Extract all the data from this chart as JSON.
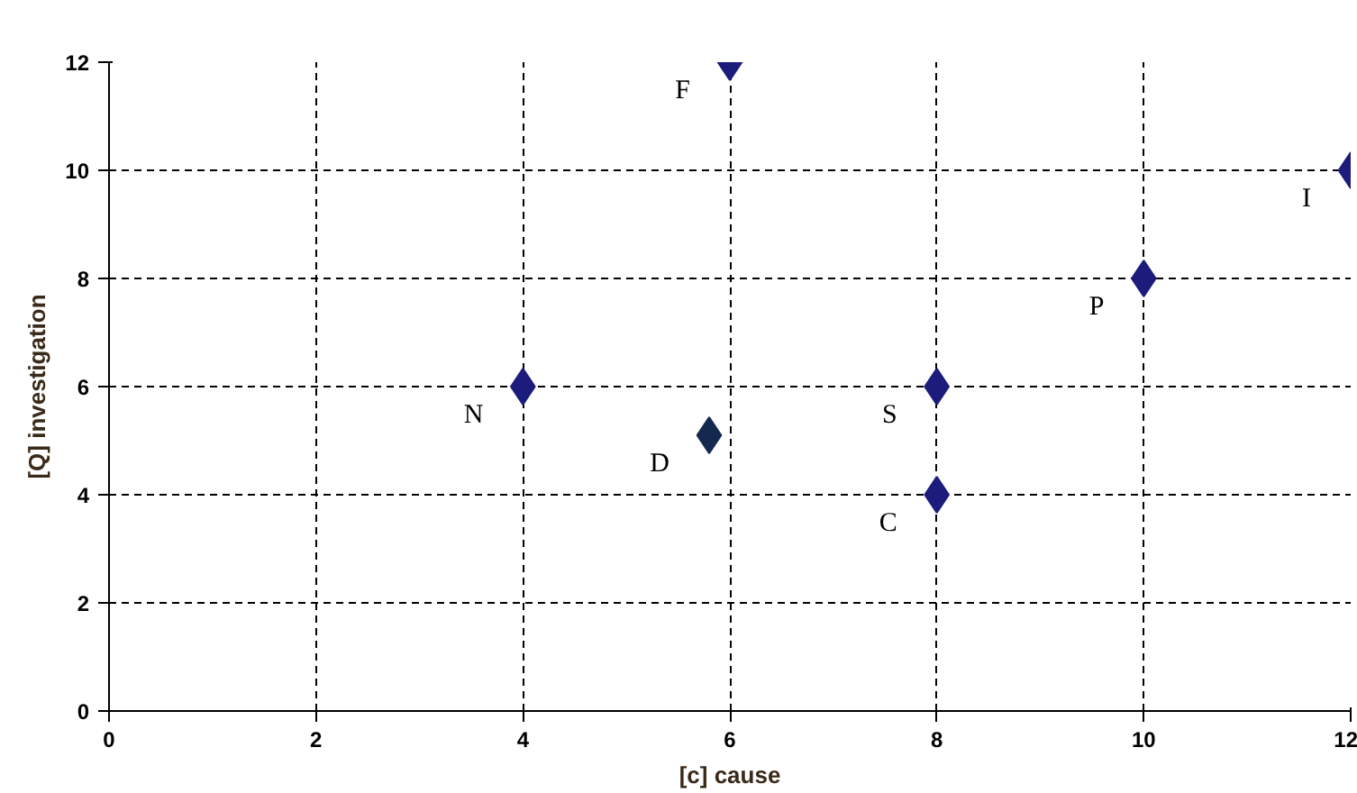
{
  "chart_data": {
    "type": "scatter",
    "xlabel": "[c] cause",
    "ylabel": "[Q] investigation",
    "x": [
      4,
      6,
      5.8,
      8,
      8,
      10,
      12
    ],
    "values": [
      6,
      12,
      5.1,
      6,
      4,
      8,
      10
    ],
    "colors": [
      "#1c1c7c",
      "#1c1c7c",
      "#142850",
      "#1c1c7c",
      "#1c1c7c",
      "#1c1c7c",
      "#1c1c7c"
    ],
    "marker": "diamond",
    "xlim": [
      0,
      12
    ],
    "ylim": [
      0,
      12
    ],
    "xticks": [
      0,
      2,
      4,
      6,
      8,
      10,
      12
    ],
    "yticks": [
      0,
      2,
      4,
      6,
      8,
      10,
      12
    ],
    "grid": true,
    "annotations": [
      {
        "text": "N",
        "x": 4,
        "y": 6
      },
      {
        "text": "F",
        "x": 6,
        "y": 12
      },
      {
        "text": "S",
        "x": 8,
        "y": 6
      },
      {
        "text": "D",
        "x": 5.8,
        "y": 5.1
      },
      {
        "text": "C",
        "x": 8,
        "y": 4
      },
      {
        "text": "P",
        "x": 10,
        "y": 8
      },
      {
        "text": "I",
        "x": 12,
        "y": 10
      }
    ]
  }
}
